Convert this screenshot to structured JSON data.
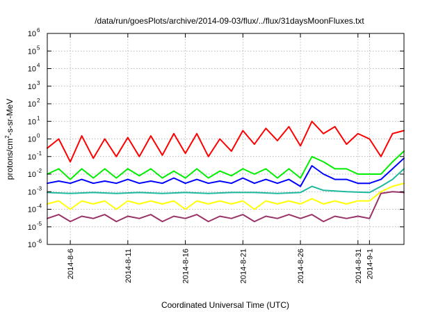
{
  "chart_data": {
    "type": "line",
    "title": "/data/run/goesPlots/archive/2014-09-03/flux/../flux/31daysMoonFluxes.txt",
    "xlabel": "Coordinated Universal Time (UTC)",
    "ylabel": "protons/cm2-s-sr-MeV",
    "ylabel_parts": {
      "pre": "protons/cm",
      "sup": "2",
      "post": "-s-sr-MeV"
    },
    "yscale": "log",
    "ylim": [
      1e-06,
      1000000.0
    ],
    "y_ticks": [
      {
        "value": -6,
        "base": "10",
        "exp": "-6"
      },
      {
        "value": -5,
        "base": "10",
        "exp": "-5"
      },
      {
        "value": -4,
        "base": "10",
        "exp": "-4"
      },
      {
        "value": -3,
        "base": "10",
        "exp": "-3"
      },
      {
        "value": -2,
        "base": "10",
        "exp": "-2"
      },
      {
        "value": -1,
        "base": "10",
        "exp": "-1"
      },
      {
        "value": 0,
        "base": "10",
        "exp": "0"
      },
      {
        "value": 1,
        "base": "10",
        "exp": "1"
      },
      {
        "value": 2,
        "base": "10",
        "exp": "2"
      },
      {
        "value": 3,
        "base": "10",
        "exp": "3"
      },
      {
        "value": 4,
        "base": "10",
        "exp": "4"
      },
      {
        "value": 5,
        "base": "10",
        "exp": "5"
      },
      {
        "value": 6,
        "base": "10",
        "exp": "6"
      }
    ],
    "xlim": [
      "2014-08-04",
      "2014-09-04"
    ],
    "x_ticks": [
      {
        "date": "2014-08-06",
        "label": "2014-8-6"
      },
      {
        "date": "2014-08-11",
        "label": "2014-8-11"
      },
      {
        "date": "2014-08-16",
        "label": "2014-8-16"
      },
      {
        "date": "2014-08-21",
        "label": "2014-8-21"
      },
      {
        "date": "2014-08-26",
        "label": "2014-8-26"
      },
      {
        "date": "2014-08-31",
        "label": "2014-8-31"
      },
      {
        "date": "2014-09-01",
        "label": "2014-9-1"
      }
    ],
    "grid": true,
    "legend": "none",
    "series": [
      {
        "color": "#ff0000",
        "x": [
          "2014-08-04",
          "2014-08-05",
          "2014-08-06",
          "2014-08-07",
          "2014-08-08",
          "2014-08-09",
          "2014-08-10",
          "2014-08-11",
          "2014-08-12",
          "2014-08-13",
          "2014-08-14",
          "2014-08-15",
          "2014-08-16",
          "2014-08-17",
          "2014-08-18",
          "2014-08-19",
          "2014-08-20",
          "2014-08-21",
          "2014-08-22",
          "2014-08-23",
          "2014-08-24",
          "2014-08-25",
          "2014-08-26",
          "2014-08-27",
          "2014-08-28",
          "2014-08-29",
          "2014-08-30",
          "2014-08-31",
          "2014-09-01",
          "2014-09-02",
          "2014-09-03",
          "2014-09-04"
        ],
        "y": [
          0.3,
          1.0,
          0.05,
          1.5,
          0.08,
          1.0,
          0.1,
          1.2,
          0.1,
          1.5,
          0.12,
          2.0,
          0.15,
          2.0,
          0.1,
          1.0,
          0.2,
          3.0,
          0.5,
          4.0,
          0.8,
          5.0,
          0.4,
          10.0,
          2.0,
          5.0,
          0.5,
          2.0,
          1.0,
          0.1,
          2.0,
          3.0
        ]
      },
      {
        "color": "#00ee00",
        "x": [
          "2014-08-04",
          "2014-08-05",
          "2014-08-06",
          "2014-08-07",
          "2014-08-08",
          "2014-08-09",
          "2014-08-10",
          "2014-08-11",
          "2014-08-12",
          "2014-08-13",
          "2014-08-14",
          "2014-08-15",
          "2014-08-16",
          "2014-08-17",
          "2014-08-18",
          "2014-08-19",
          "2014-08-20",
          "2014-08-21",
          "2014-08-22",
          "2014-08-23",
          "2014-08-24",
          "2014-08-25",
          "2014-08-26",
          "2014-08-27",
          "2014-08-28",
          "2014-08-29",
          "2014-08-30",
          "2014-08-31",
          "2014-09-01",
          "2014-09-02",
          "2014-09-03",
          "2014-09-04"
        ],
        "y": [
          0.01,
          0.02,
          0.005,
          0.02,
          0.006,
          0.02,
          0.006,
          0.02,
          0.008,
          0.02,
          0.006,
          0.015,
          0.006,
          0.02,
          0.006,
          0.015,
          0.008,
          0.02,
          0.01,
          0.02,
          0.006,
          0.02,
          0.006,
          0.1,
          0.05,
          0.02,
          0.02,
          0.01,
          0.01,
          0.01,
          0.05,
          0.2
        ]
      },
      {
        "color": "#0000ff",
        "x": [
          "2014-08-04",
          "2014-08-05",
          "2014-08-06",
          "2014-08-07",
          "2014-08-08",
          "2014-08-09",
          "2014-08-10",
          "2014-08-11",
          "2014-08-12",
          "2014-08-13",
          "2014-08-14",
          "2014-08-15",
          "2014-08-16",
          "2014-08-17",
          "2014-08-18",
          "2014-08-19",
          "2014-08-20",
          "2014-08-21",
          "2014-08-22",
          "2014-08-23",
          "2014-08-24",
          "2014-08-25",
          "2014-08-26",
          "2014-08-27",
          "2014-08-28",
          "2014-08-29",
          "2014-08-30",
          "2014-08-31",
          "2014-09-01",
          "2014-09-02",
          "2014-09-03",
          "2014-09-04"
        ],
        "y": [
          0.003,
          0.004,
          0.003,
          0.005,
          0.003,
          0.004,
          0.003,
          0.005,
          0.003,
          0.004,
          0.003,
          0.006,
          0.003,
          0.005,
          0.003,
          0.004,
          0.003,
          0.006,
          0.003,
          0.005,
          0.003,
          0.005,
          0.002,
          0.03,
          0.01,
          0.005,
          0.005,
          0.003,
          0.003,
          0.005,
          0.02,
          0.08
        ]
      },
      {
        "color": "#1fb89c",
        "x": [
          "2014-08-04",
          "2014-08-06",
          "2014-08-08",
          "2014-08-10",
          "2014-08-12",
          "2014-08-14",
          "2014-08-16",
          "2014-08-18",
          "2014-08-20",
          "2014-08-22",
          "2014-08-24",
          "2014-08-26",
          "2014-08-27",
          "2014-08-28",
          "2014-08-30",
          "2014-09-01",
          "2014-09-02",
          "2014-09-03",
          "2014-09-04"
        ],
        "y": [
          0.0009,
          0.0008,
          0.0009,
          0.0008,
          0.0009,
          0.0008,
          0.0009,
          0.0008,
          0.0009,
          0.0009,
          0.0008,
          0.0009,
          0.002,
          0.0012,
          0.001,
          0.0009,
          0.002,
          0.005,
          0.02
        ]
      },
      {
        "color": "#ffff00",
        "x": [
          "2014-08-04",
          "2014-08-05",
          "2014-08-06",
          "2014-08-07",
          "2014-08-08",
          "2014-08-09",
          "2014-08-10",
          "2014-08-11",
          "2014-08-12",
          "2014-08-13",
          "2014-08-14",
          "2014-08-15",
          "2014-08-16",
          "2014-08-17",
          "2014-08-18",
          "2014-08-19",
          "2014-08-20",
          "2014-08-21",
          "2014-08-22",
          "2014-08-23",
          "2014-08-24",
          "2014-08-25",
          "2014-08-26",
          "2014-08-27",
          "2014-08-28",
          "2014-08-29",
          "2014-08-30",
          "2014-08-31",
          "2014-09-01",
          "2014-09-02",
          "2014-09-03",
          "2014-09-04"
        ],
        "y": [
          0.0002,
          0.0003,
          0.0001,
          0.0003,
          0.0002,
          0.0003,
          0.0001,
          0.0003,
          0.0002,
          0.0003,
          0.0002,
          0.0003,
          0.0001,
          0.0003,
          0.0002,
          0.0003,
          0.0002,
          0.0003,
          0.0001,
          0.0003,
          0.0002,
          0.0003,
          0.0002,
          0.0004,
          0.0002,
          0.0003,
          0.0002,
          0.0003,
          0.0003,
          0.001,
          0.002,
          0.003
        ]
      },
      {
        "color": "#993366",
        "x": [
          "2014-08-04",
          "2014-08-05",
          "2014-08-06",
          "2014-08-07",
          "2014-08-08",
          "2014-08-09",
          "2014-08-10",
          "2014-08-11",
          "2014-08-12",
          "2014-08-13",
          "2014-08-14",
          "2014-08-15",
          "2014-08-16",
          "2014-08-17",
          "2014-08-18",
          "2014-08-19",
          "2014-08-20",
          "2014-08-21",
          "2014-08-22",
          "2014-08-23",
          "2014-08-24",
          "2014-08-25",
          "2014-08-26",
          "2014-08-27",
          "2014-08-28",
          "2014-08-29",
          "2014-08-30",
          "2014-08-31",
          "2014-09-01",
          "2014-09-02",
          "2014-09-03",
          "2014-09-04"
        ],
        "y": [
          3e-05,
          5e-05,
          2e-05,
          4e-05,
          3e-05,
          5e-05,
          2e-05,
          4e-05,
          3e-05,
          5e-05,
          2e-05,
          4e-05,
          3e-05,
          5e-05,
          2e-05,
          4e-05,
          3e-05,
          5e-05,
          2e-05,
          4e-05,
          3e-05,
          5e-05,
          3e-05,
          5e-05,
          2e-05,
          4e-05,
          3e-05,
          4e-05,
          3e-05,
          0.0008,
          0.001,
          0.0009
        ]
      }
    ]
  }
}
